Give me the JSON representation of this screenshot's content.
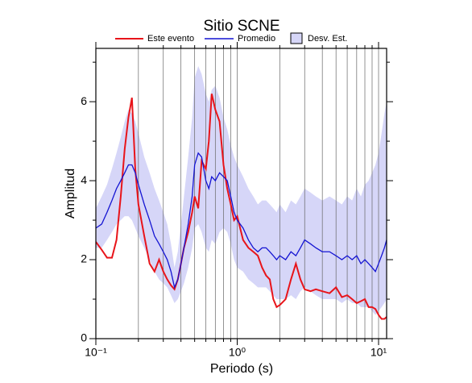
{
  "chart_data": {
    "type": "line",
    "title": "Sitio SCNE",
    "xlabel": "Periodo (s)",
    "ylabel": "Amplitud",
    "xscale": "log",
    "xlim": [
      0.1,
      11.4
    ],
    "ylim": [
      0,
      7.35
    ],
    "xticks": [
      {
        "value": 0.1,
        "label": "10⁻¹"
      },
      {
        "value": 1,
        "label": "10⁰"
      },
      {
        "value": 10,
        "label": "10¹"
      }
    ],
    "xgrid": [
      0.2,
      0.3,
      0.4,
      0.5,
      0.6,
      0.7,
      0.8,
      0.9,
      1,
      2,
      3,
      4,
      5,
      6,
      7,
      8,
      9,
      10
    ],
    "yticks": [
      0,
      2,
      4,
      6
    ],
    "yminor": [
      1,
      3,
      5,
      7
    ],
    "x": [
      0.1,
      0.11,
      0.12,
      0.13,
      0.14,
      0.15,
      0.16,
      0.17,
      0.18,
      0.19,
      0.2,
      0.22,
      0.24,
      0.26,
      0.28,
      0.3,
      0.32,
      0.34,
      0.36,
      0.38,
      0.4,
      0.42,
      0.45,
      0.48,
      0.5,
      0.53,
      0.56,
      0.6,
      0.63,
      0.66,
      0.7,
      0.75,
      0.8,
      0.85,
      0.9,
      0.95,
      1.0,
      1.1,
      1.2,
      1.3,
      1.4,
      1.5,
      1.6,
      1.7,
      1.8,
      1.9,
      2.0,
      2.2,
      2.4,
      2.6,
      2.8,
      3.0,
      3.3,
      3.6,
      4.0,
      4.5,
      5.0,
      5.5,
      6.0,
      6.5,
      7.0,
      7.5,
      8.0,
      8.5,
      9.0,
      9.5,
      10,
      10.5,
      11,
      11.4
    ],
    "band": {
      "name": "Desv. Est.",
      "color": "#d6d6f8",
      "upper": [
        3.3,
        3.6,
        3.9,
        4.3,
        4.7,
        5.1,
        5.5,
        5.8,
        5.7,
        5.5,
        5.2,
        4.6,
        4.2,
        3.8,
        3.5,
        3.2,
        2.9,
        2.4,
        1.8,
        2.2,
        2.9,
        3.6,
        4.6,
        5.6,
        6.6,
        6.9,
        6.7,
        6.2,
        6.0,
        6.3,
        6.4,
        6.1,
        5.6,
        5.3,
        4.9,
        4.6,
        4.4,
        4.1,
        3.8,
        3.6,
        3.4,
        3.5,
        3.5,
        3.4,
        3.3,
        3.2,
        3.4,
        3.2,
        3.5,
        3.4,
        3.6,
        3.8,
        3.7,
        3.6,
        3.5,
        3.6,
        3.5,
        3.4,
        3.6,
        3.5,
        3.8,
        3.6,
        3.9,
        4.0,
        4.2,
        4.4,
        4.7,
        5.2,
        5.7,
        6.0
      ],
      "lower": [
        2.3,
        2.3,
        2.5,
        2.7,
        2.9,
        3.0,
        3.1,
        3.1,
        3.0,
        2.8,
        2.6,
        2.3,
        2.0,
        1.7,
        1.5,
        1.4,
        1.3,
        1.1,
        0.9,
        1.0,
        1.2,
        1.4,
        1.8,
        2.3,
        2.8,
        2.9,
        2.7,
        2.3,
        2.2,
        2.5,
        2.4,
        2.7,
        2.8,
        2.7,
        2.4,
        2.0,
        1.8,
        1.7,
        1.5,
        1.4,
        1.3,
        1.3,
        1.3,
        1.2,
        1.1,
        1.0,
        1.0,
        1.0,
        1.1,
        1.0,
        1.2,
        1.3,
        1.2,
        1.1,
        1.0,
        1.0,
        1.0,
        0.9,
        1.0,
        0.9,
        0.9,
        0.8,
        0.8,
        0.8,
        0.7,
        0.6,
        0.7,
        0.8,
        0.9,
        1.0
      ]
    },
    "series": [
      {
        "name": "Este evento",
        "color": "#e8141a",
        "values": [
          2.45,
          2.25,
          2.05,
          2.05,
          2.5,
          3.6,
          4.8,
          5.6,
          6.1,
          4.3,
          3.4,
          2.6,
          1.9,
          1.7,
          2.0,
          1.7,
          1.5,
          1.35,
          1.25,
          1.5,
          1.9,
          2.3,
          2.7,
          3.2,
          3.6,
          3.3,
          4.5,
          4.3,
          5.0,
          6.2,
          5.8,
          5.5,
          4.4,
          3.8,
          3.4,
          3.0,
          3.1,
          2.5,
          2.3,
          2.2,
          2.1,
          1.8,
          1.6,
          1.5,
          1.0,
          0.8,
          0.85,
          1.0,
          1.5,
          1.9,
          1.5,
          1.25,
          1.2,
          1.25,
          1.2,
          1.15,
          1.3,
          1.05,
          1.1,
          1.0,
          0.9,
          0.95,
          1.0,
          0.8,
          0.8,
          0.75,
          0.6,
          0.5,
          0.5,
          0.55
        ]
      },
      {
        "name": "Promedio",
        "color": "#1414d2",
        "values": [
          2.8,
          2.9,
          3.2,
          3.5,
          3.8,
          4.0,
          4.2,
          4.4,
          4.4,
          4.2,
          3.9,
          3.4,
          3.0,
          2.6,
          2.4,
          2.2,
          2.0,
          1.7,
          1.3,
          1.5,
          1.9,
          2.3,
          2.9,
          3.6,
          4.4,
          4.7,
          4.6,
          4.0,
          3.8,
          4.1,
          4.0,
          4.2,
          4.1,
          4.0,
          3.6,
          3.2,
          3.0,
          2.8,
          2.5,
          2.3,
          2.2,
          2.3,
          2.3,
          2.2,
          2.1,
          2.0,
          2.1,
          2.0,
          2.2,
          2.1,
          2.3,
          2.5,
          2.4,
          2.3,
          2.2,
          2.2,
          2.1,
          2.0,
          2.1,
          2.0,
          2.1,
          1.9,
          2.0,
          1.9,
          1.8,
          1.7,
          1.9,
          2.1,
          2.3,
          2.5
        ]
      }
    ]
  }
}
